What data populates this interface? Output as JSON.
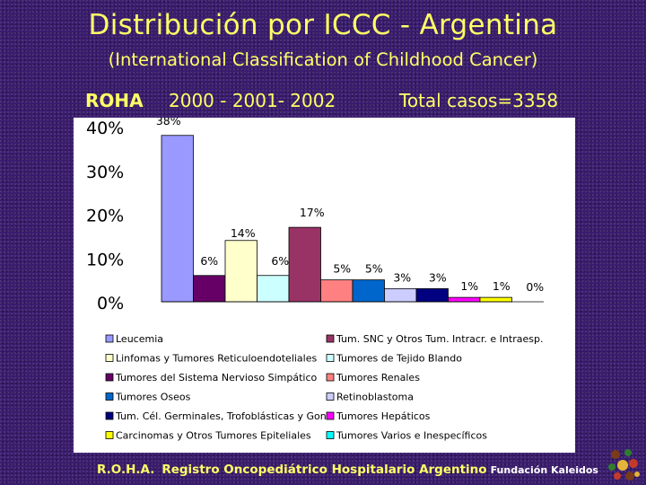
{
  "slide": {
    "title": "Distribución por ICCC - Argentina",
    "subtitle": "(International Classification of Childhood Cancer)",
    "roha": "ROHA",
    "years": "2000 - 2001- 2002",
    "total": "Total casos=3358",
    "footer_acronym": "R.O.H.A.",
    "footer_name": "Registro Oncopediátrico Hospitalario Argentino",
    "footer_foundation": "Fundación Kaleidos"
  },
  "chart_data": {
    "type": "bar",
    "title": "",
    "xlabel": "",
    "ylabel": "",
    "ylim": [
      0,
      40
    ],
    "yticks": [
      "40%",
      "30%",
      "20%",
      "10%",
      "0%"
    ],
    "ytick_values": [
      40,
      30,
      20,
      10,
      0
    ],
    "categories": [
      "Leucemia",
      "Tum. SNC y Otros Tum. Intracr. e Intraesp.",
      "Linfomas y Tumores Reticuloendoteliales",
      "Tumores de Tejido Blando",
      "Tumores del Sistema Nervioso Simpático",
      "Tumores Renales",
      "Tumores Oseos",
      "Retinoblastoma",
      "Tum. Cél. Germinales, Trofoblásticas y Gon.",
      "Tumores Hepáticos",
      "Carcinomas y Otros Tumores Epiteliales",
      "Tumores Varios e Inespecíficos"
    ],
    "values": [
      38,
      17,
      14,
      6,
      6,
      5,
      5,
      3,
      3,
      1,
      1,
      0
    ],
    "labels": [
      "38%",
      "17%",
      "14%",
      "6%",
      "6%",
      "5%",
      "5%",
      "3%",
      "3%",
      "1%",
      "1%",
      "0%"
    ],
    "bar_order": [
      0,
      4,
      2,
      3,
      1,
      5,
      6,
      7,
      8,
      9,
      10,
      11
    ],
    "colors": [
      "#9999ff",
      "#993366",
      "#ffffcc",
      "#ccffff",
      "#660066",
      "#ff8080",
      "#0066cc",
      "#ccccff",
      "#000080",
      "#ff00ff",
      "#ffff00",
      "#00ffff"
    ],
    "legend_position": "bottom"
  }
}
